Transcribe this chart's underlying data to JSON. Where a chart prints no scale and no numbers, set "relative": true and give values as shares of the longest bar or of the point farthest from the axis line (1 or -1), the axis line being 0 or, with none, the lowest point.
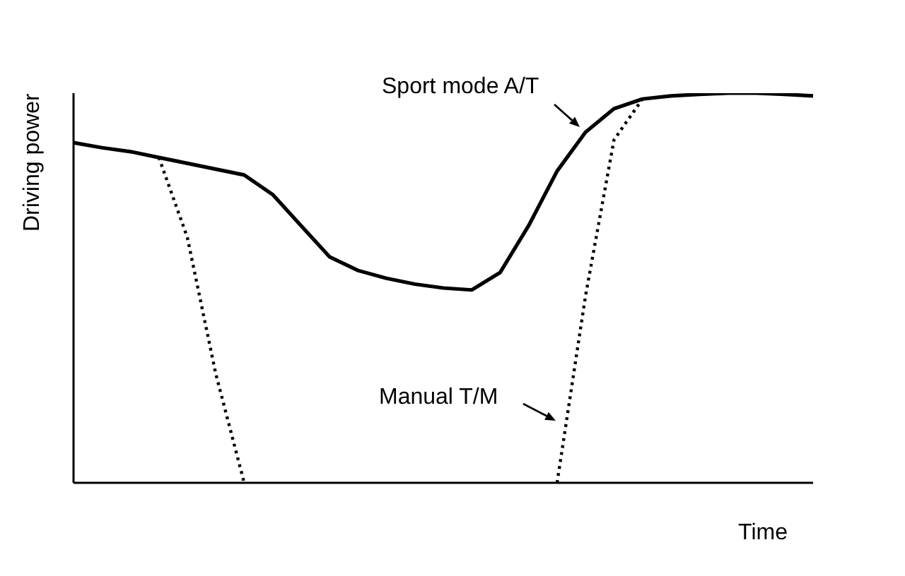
{
  "chart_data": {
    "type": "line",
    "xlabel": "Time",
    "ylabel": "Driving power",
    "relative": true,
    "marker": "none",
    "categories": [
      null,
      null,
      null,
      null,
      null,
      null,
      null,
      null,
      null,
      null,
      null,
      null,
      null,
      null,
      null,
      null,
      null,
      null,
      null,
      null,
      null,
      null,
      null,
      null,
      null,
      null,
      null
    ],
    "series": [
      {
        "name": "Sport mode A/T",
        "color": "#000000",
        "line_style": "solid",
        "values": [
          0.873,
          0.86,
          0.85,
          0.835,
          0.82,
          0.805,
          0.79,
          0.74,
          0.66,
          0.58,
          0.545,
          0.525,
          0.51,
          0.5,
          0.495,
          0.54,
          0.66,
          0.8,
          0.9,
          0.96,
          0.985,
          0.993,
          0.997,
          1,
          1,
          0.997,
          0.993
        ]
      },
      {
        "name": "Manual T/M",
        "color": "#000000",
        "line_style": "dotted",
        "values": [
          null,
          null,
          null,
          0.835,
          0.63,
          0.28,
          0,
          null,
          null,
          null,
          null,
          null,
          null,
          null,
          null,
          null,
          null,
          0,
          0.48,
          0.88,
          0.985,
          null,
          null,
          null,
          null,
          null,
          null
        ]
      }
    ]
  }
}
